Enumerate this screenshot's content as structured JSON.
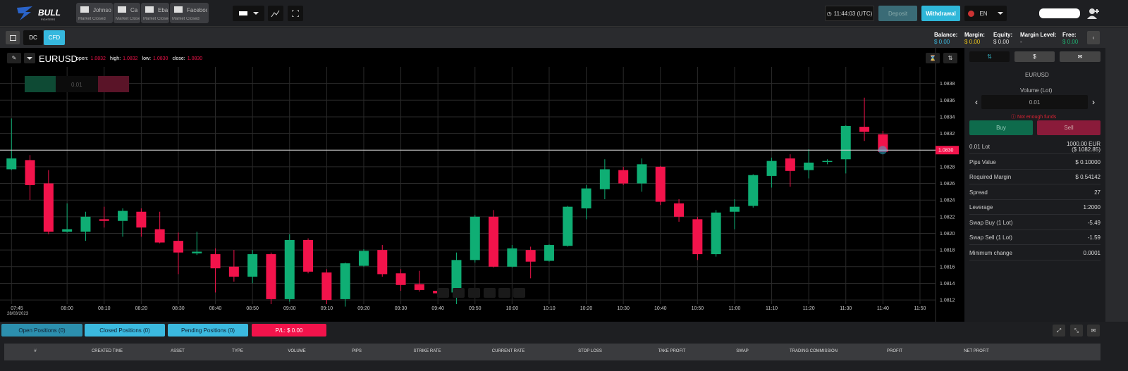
{
  "header": {
    "logo": "BULL",
    "logo_sub": "FIGHTERS",
    "tabs": [
      {
        "name": "Johnso",
        "status": "Market Closed"
      },
      {
        "name": "Ca",
        "status": "Market Closed"
      },
      {
        "name": "Eba",
        "status": "Market Closed"
      },
      {
        "name": "Facebook",
        "status": "Market Closed"
      }
    ],
    "clock": "11:44:03 (UTC)",
    "deposit": "Deposit",
    "withdrawal": "Withdrawal",
    "language": "EN"
  },
  "toolbar": {
    "modes": [
      "DC",
      "CFD"
    ],
    "account": [
      {
        "label": "Balance:",
        "value": "$ 0.00"
      },
      {
        "label": "Margin:",
        "value": "$ 0.00"
      },
      {
        "label": "Equity:",
        "value": "$ 0.00"
      },
      {
        "label": "Margin Level:",
        "value": "-"
      },
      {
        "label": "Free:",
        "value": "$ 0.00"
      }
    ]
  },
  "chart_header": {
    "symbol": "EURUSD",
    "ohlc": [
      {
        "label": "open:",
        "value": "1.0832"
      },
      {
        "label": "high:",
        "value": "1.0832"
      },
      {
        "label": "low:",
        "value": "1.0830"
      },
      {
        "label": "close:",
        "value": "1.0830"
      }
    ],
    "widget_volume": "0.01"
  },
  "chart_data": {
    "type": "candlestick",
    "up_color": "#0fae74",
    "down_color": "#f2134b",
    "x": [
      "07:45",
      "07:50",
      "07:55",
      "08:00",
      "08:05",
      "08:10",
      "08:15",
      "08:20",
      "08:25",
      "08:30",
      "08:35",
      "08:40",
      "08:45",
      "08:50",
      "08:55",
      "09:00",
      "09:05",
      "09:10",
      "09:15",
      "09:20",
      "09:25",
      "09:30",
      "09:35",
      "09:40",
      "09:45",
      "09:50",
      "09:55",
      "10:00",
      "10:05",
      "10:10",
      "10:15",
      "10:20",
      "10:25",
      "10:30",
      "10:35",
      "10:40",
      "10:45",
      "10:50",
      "10:55",
      "11:00",
      "11:05",
      "11:10",
      "11:15",
      "11:20",
      "11:25",
      "11:30",
      "11:35",
      "11:40"
    ],
    "open": [
      1.08277,
      1.08288,
      1.0826,
      1.08202,
      1.08202,
      1.08217,
      1.08215,
      1.08226,
      1.08205,
      1.08191,
      1.08176,
      1.08175,
      1.0816,
      1.08148,
      1.08175,
      1.08121,
      1.08192,
      1.08153,
      1.08121,
      1.08161,
      1.0818,
      1.08152,
      1.08139,
      1.08131,
      1.08129,
      1.08168,
      1.0822,
      1.0816,
      1.0818,
      1.08167,
      1.08185,
      1.0823,
      1.08253,
      1.08276,
      1.0826,
      1.0828,
      1.08236,
      1.08217,
      1.08175,
      1.08226,
      1.08233,
      1.08269,
      1.0829,
      1.08276,
      1.08286,
      1.08289,
      1.08328,
      1.08319
    ],
    "high": [
      1.08338,
      1.08294,
      1.08276,
      1.08236,
      1.08226,
      1.08232,
      1.0823,
      1.0823,
      1.08226,
      1.08201,
      1.08202,
      1.08182,
      1.0818,
      1.0818,
      1.08177,
      1.08199,
      1.08194,
      1.08157,
      1.08165,
      1.08181,
      1.08186,
      1.08157,
      1.08155,
      1.08133,
      1.08177,
      1.08222,
      1.08228,
      1.08186,
      1.08184,
      1.08187,
      1.08233,
      1.08258,
      1.08289,
      1.0828,
      1.0829,
      1.08281,
      1.08241,
      1.0822,
      1.08228,
      1.08241,
      1.08271,
      1.08291,
      1.08295,
      1.08301,
      1.08289,
      1.0833,
      1.08363,
      1.08323
    ],
    "low": [
      1.08276,
      1.0824,
      1.08199,
      1.08201,
      1.08191,
      1.08207,
      1.08196,
      1.08196,
      1.08188,
      1.08151,
      1.08174,
      1.08129,
      1.08142,
      1.0814,
      1.08115,
      1.08118,
      1.08152,
      1.08115,
      1.08112,
      1.0816,
      1.08148,
      1.08131,
      1.0813,
      1.08127,
      1.08115,
      1.08165,
      1.08159,
      1.08159,
      1.08146,
      1.08166,
      1.08184,
      1.08217,
      1.08241,
      1.08258,
      1.0825,
      1.08234,
      1.08214,
      1.08168,
      1.08172,
      1.08205,
      1.08231,
      1.08255,
      1.08256,
      1.08266,
      1.08283,
      1.08272,
      1.08311,
      1.08298
    ],
    "close": [
      1.0829,
      1.08258,
      1.08202,
      1.08205,
      1.0822,
      1.08215,
      1.08227,
      1.08207,
      1.08189,
      1.08177,
      1.08178,
      1.08158,
      1.08148,
      1.08175,
      1.08121,
      1.08192,
      1.08154,
      1.0812,
      1.08164,
      1.08179,
      1.08151,
      1.08138,
      1.08132,
      1.08128,
      1.08168,
      1.0822,
      1.0816,
      1.08182,
      1.08166,
      1.08186,
      1.08232,
      1.08254,
      1.08277,
      1.0826,
      1.08283,
      1.08238,
      1.0822,
      1.08175,
      1.08225,
      1.08232,
      1.0827,
      1.08287,
      1.08275,
      1.08285,
      1.08287,
      1.08329,
      1.08322,
      1.08298
    ],
    "xlim": [
      "07:44",
      "11:54"
    ],
    "xticks": [
      "07:45",
      "08:00",
      "08:10",
      "08:20",
      "08:30",
      "08:40",
      "08:50",
      "09:00",
      "09:10",
      "09:20",
      "09:30",
      "09:40",
      "09:50",
      "10:00",
      "10:10",
      "10:20",
      "10:30",
      "10:40",
      "10:50",
      "11:00",
      "11:10",
      "11:20",
      "11:30",
      "11:40",
      "11:50"
    ],
    "x_date_label": "28/03/2023",
    "ylim": [
      1.08115,
      1.084
    ],
    "yticks": [
      1.0812,
      1.0814,
      1.0816,
      1.0818,
      {
        "value": 1.082,
        "label": "1.0820"
      },
      1.0822,
      1.0824,
      1.0826,
      1.0828,
      {
        "value": 1.083,
        "label": "1.0830"
      },
      1.0832,
      1.0834,
      1.0836,
      1.0838
    ],
    "current_price": {
      "value": 1.083,
      "label": "1.0830"
    },
    "grid": true
  },
  "order_panel": {
    "symbol": "EURUSD",
    "volume_label": "Volume (Lot)",
    "volume": "0.01",
    "warning": "Not enough funds",
    "buy": "Buy",
    "sell": "Sell",
    "rows": [
      {
        "label": "0.01 Lot",
        "value": "1000.00 EUR",
        "value2": "($ 1082.85)"
      },
      {
        "label": "Pips Value",
        "value": "$ 0.10000"
      },
      {
        "label": "Required Margin",
        "value": "$ 0.54142"
      },
      {
        "label": "Spread",
        "value": "27"
      },
      {
        "label": "Leverage",
        "value": "1:2000"
      },
      {
        "label": "Swap Buy (1 Lot)",
        "value": "-5.49"
      },
      {
        "label": "Swap Sell (1 Lot)",
        "value": "-1.59"
      },
      {
        "label": "Minimum change",
        "value": "0.0001"
      }
    ]
  },
  "positions": {
    "tabs": [
      "Open Positions (0)",
      "Closed Positions (0)",
      "Pending Positions (0)"
    ],
    "pl": "P/L: $ 0.00",
    "columns": [
      "#",
      "CREATED TIME",
      "ASSET",
      "TYPE",
      "VOLUME",
      "PIPS",
      "STRIKE RATE",
      "CURRENT RATE",
      "STOP LOSS",
      "TAKE PROFIT",
      "SWAP",
      "TRADING COMMISSION",
      "PROFIT",
      "NET PROFIT"
    ]
  }
}
